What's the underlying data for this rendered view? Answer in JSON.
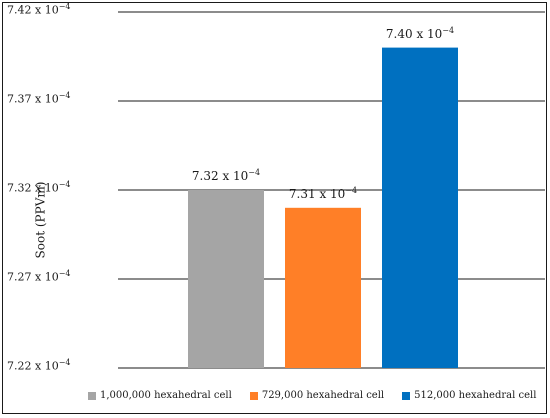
{
  "chart_data": {
    "type": "bar",
    "title": "",
    "xlabel": "",
    "ylabel": "Soot (PPVm)",
    "ylim": [
      7.22,
      7.42
    ],
    "tick_values": [
      7.22,
      7.27,
      7.32,
      7.37,
      7.42
    ],
    "tick_labels": [
      "7.22 x 10",
      "7.27 x 10",
      "7.32 x 10",
      "7.37 x 10",
      "7.42 x 10"
    ],
    "tick_exponent": "−4",
    "grid": true,
    "legend_position": "bottom",
    "series": [
      {
        "name": "1,000,000 hexahedral cell",
        "value": 7.32,
        "label": "7.32 x 10",
        "label_exponent": "−4",
        "color": "#a5a5a5"
      },
      {
        "name": "729,000 hexahedral cell",
        "value": 7.31,
        "label": "7.31 x 10",
        "label_exponent": "−4",
        "color": "#ff7f27"
      },
      {
        "name": "512,000 hexahedral cell",
        "value": 7.4,
        "label": "7.40 x 10",
        "label_exponent": "−4",
        "color": "#0070c0"
      }
    ]
  }
}
